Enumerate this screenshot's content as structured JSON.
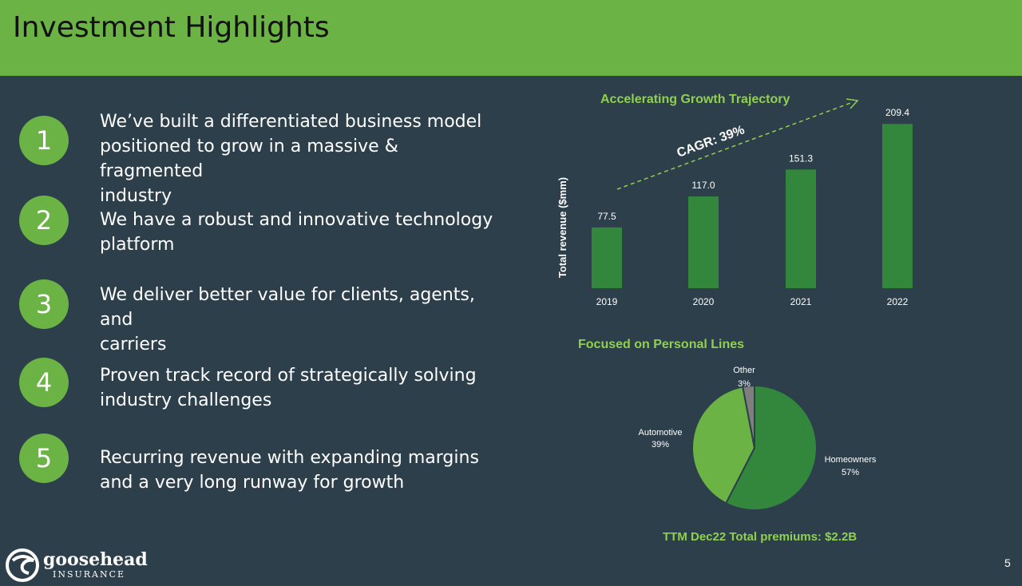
{
  "header": {
    "title": "Investment Highlights"
  },
  "highlights": [
    {
      "number": "1",
      "text": "We’ve built a differentiated business model\npositioned to grow in a massive & fragmented\nindustry"
    },
    {
      "number": "2",
      "text": "We have a robust and innovative technology\nplatform"
    },
    {
      "number": "3",
      "text": "We deliver better value for clients, agents, and\ncarriers"
    },
    {
      "number": "4",
      "text": "Proven track record of strategically solving\nindustry challenges"
    },
    {
      "number": "5",
      "text": "Recurring revenue with expanding margins\nand a very long runway for growth"
    }
  ],
  "chart_data": [
    {
      "type": "bar",
      "title": "Accelerating Growth Trajectory",
      "ylabel": "Total revenue ($mm)",
      "xlabel": "",
      "categories": [
        "2019",
        "2020",
        "2021",
        "2022"
      ],
      "values": [
        77.5,
        117.0,
        151.3,
        209.4
      ],
      "value_labels": [
        "77.5",
        "117.0",
        "151.3",
        "209.4"
      ],
      "annotation": "CAGR: 39%",
      "ylim": [
        0,
        230
      ],
      "color": "#32873d"
    },
    {
      "type": "pie",
      "title": "Focused on Personal Lines",
      "slices": [
        {
          "label": "Homeowners",
          "value": 57,
          "pct_label": "57%",
          "color": "#32873d"
        },
        {
          "label": "Automotive",
          "value": 39,
          "pct_label": "39%",
          "color": "#6ab344"
        },
        {
          "label": "Other",
          "value": 3,
          "pct_label": "3%",
          "color": "#7f7f7f"
        }
      ],
      "footnote": "TTM Dec22 Total premiums: $2.2B"
    }
  ],
  "footer": {
    "logo_word": "goosehead",
    "logo_sub": "INSURANCE",
    "page_number": "5"
  },
  "colors": {
    "brand_green": "#6ab344",
    "dark_green": "#32873d",
    "background": "#2d3f4b",
    "accent_text": "#8fd14f"
  }
}
